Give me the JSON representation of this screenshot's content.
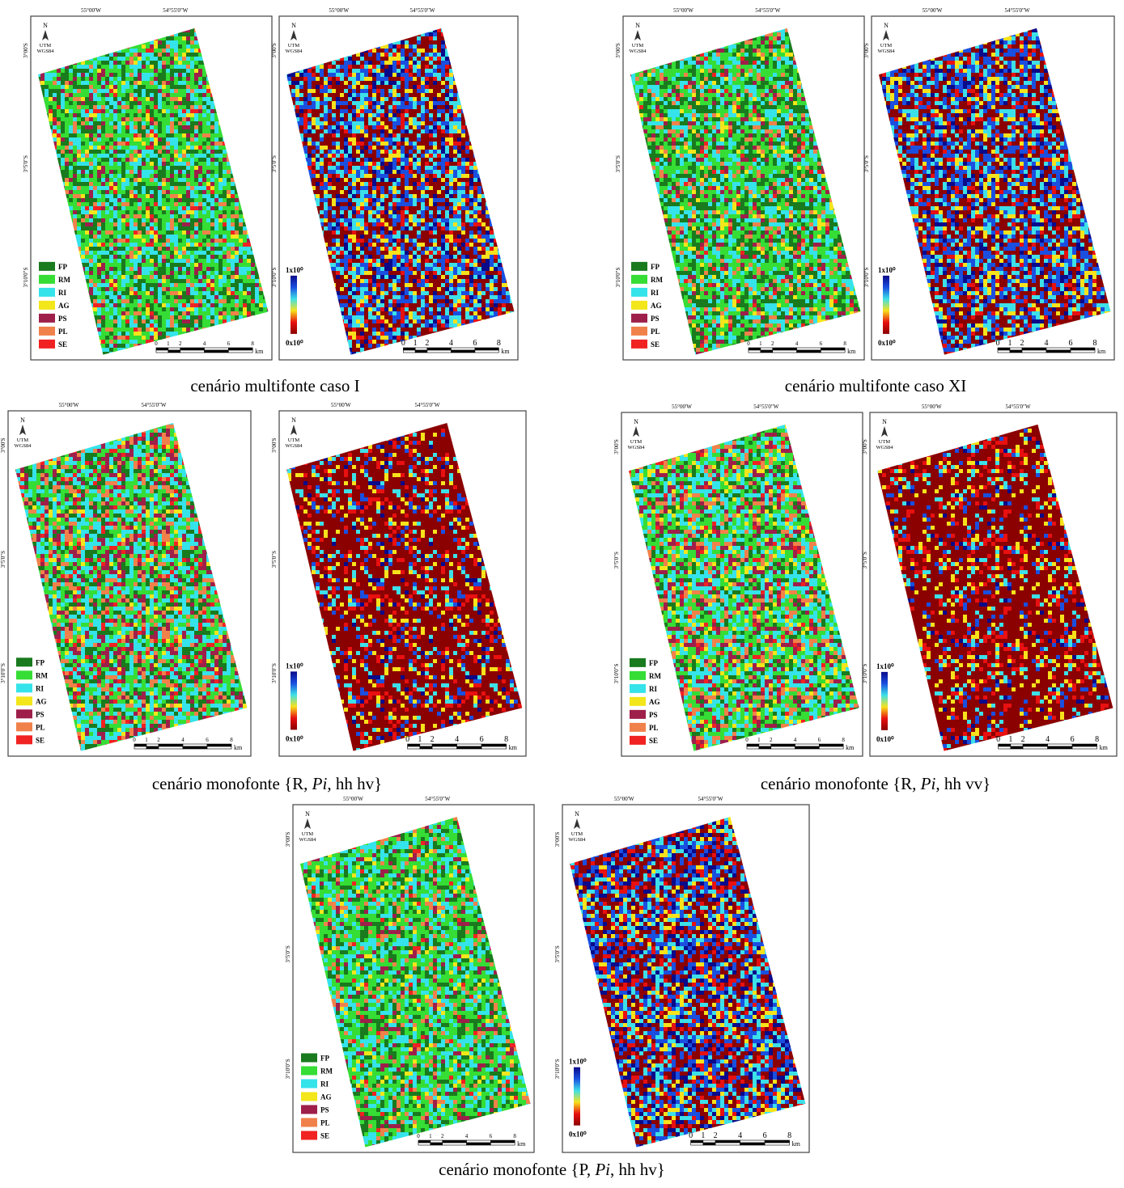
{
  "coordinates": {
    "top": [
      "55°00'W",
      "54°55'0\"W"
    ],
    "left": [
      "3°00'S",
      "3°5'0\"S",
      "3°10'0\"S"
    ]
  },
  "north": "N",
  "projection": [
    "UTM",
    "WGS84"
  ],
  "legend": [
    {
      "label": "FP",
      "color": "#197a1e"
    },
    {
      "label": "RM",
      "color": "#35dd35"
    },
    {
      "label": "RI",
      "color": "#35e3ea"
    },
    {
      "label": "AG",
      "color": "#f3e61a"
    },
    {
      "label": "PS",
      "color": "#9e1f4a"
    },
    {
      "label": "PL",
      "color": "#f0814a"
    },
    {
      "label": "SE",
      "color": "#f02222"
    }
  ],
  "colorbar": {
    "max": "1x10⁰",
    "min": "0x10⁰",
    "colors": [
      "#8b0000",
      "#e81010",
      "#f7e21c",
      "#3de0e8",
      "#1a4fe0",
      "#0a0a8a"
    ]
  },
  "scale": {
    "ticks": [
      0,
      1,
      2,
      4,
      6,
      8
    ],
    "unit": "km"
  },
  "figures": [
    {
      "caption": [
        {
          "text": "cenário multifonte caso I",
          "italic": false
        }
      ]
    },
    {
      "caption": [
        {
          "text": "cenário multifonte caso XI",
          "italic": false
        }
      ]
    },
    {
      "caption": [
        {
          "text": "cenário monofonte {R, ",
          "italic": false
        },
        {
          "text": "Pi",
          "italic": true
        },
        {
          "text": ", hh hv}",
          "italic": false
        }
      ]
    },
    {
      "caption": [
        {
          "text": "cenário monofonte {R, ",
          "italic": false
        },
        {
          "text": "Pi",
          "italic": true
        },
        {
          "text": ", hh vv}",
          "italic": false
        }
      ]
    },
    {
      "caption": [
        {
          "text": "cenário monofonte {P, ",
          "italic": false
        },
        {
          "text": "Pi",
          "italic": true
        },
        {
          "text": ", hh hv}",
          "italic": false
        }
      ]
    }
  ]
}
